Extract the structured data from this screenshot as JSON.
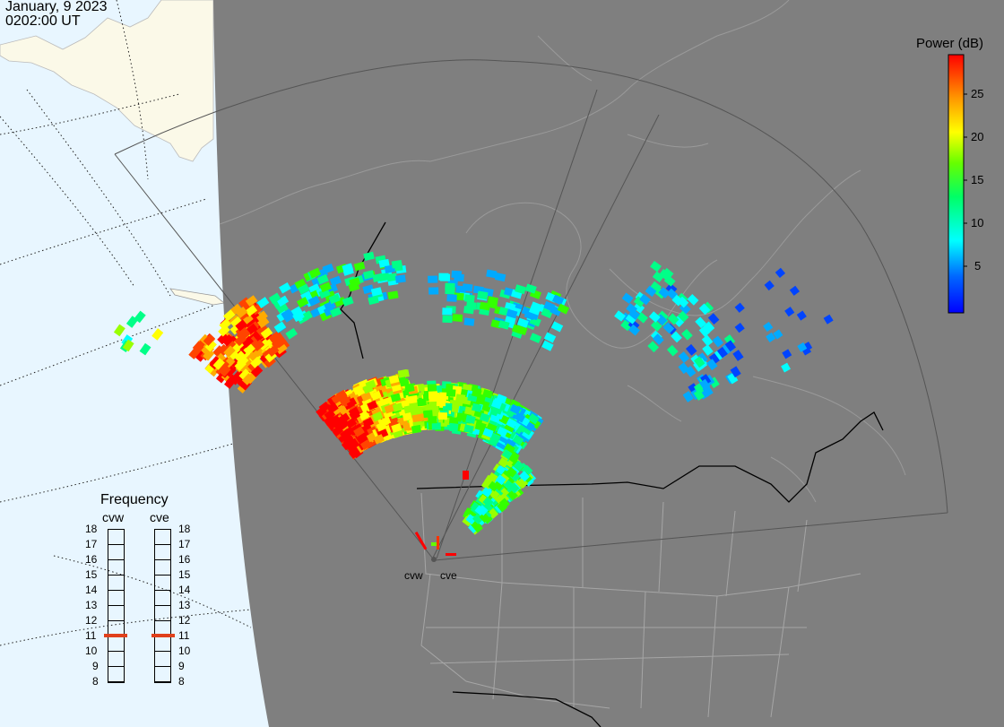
{
  "header": {
    "date": "January, 9 2023",
    "time": "0202:00 UT"
  },
  "frequency_panel": {
    "title": "Frequency",
    "radars": [
      {
        "name": "cvw",
        "frequency_mhz": 11
      },
      {
        "name": "cve",
        "frequency_mhz": 11
      }
    ],
    "scale": [
      "18",
      "17",
      "16",
      "15",
      "14",
      "13",
      "12",
      "11",
      "10",
      "9",
      "8"
    ],
    "marker_color": "#e0401a"
  },
  "colorbar": {
    "title": "Power (dB)",
    "ticks": [
      "25",
      "20",
      "15",
      "10",
      "5"
    ],
    "range": [
      0,
      30
    ],
    "colors": [
      "#0000ff",
      "#00aaff",
      "#00ffff",
      "#00ff66",
      "#66ff00",
      "#ffff00",
      "#ff9900",
      "#ff0000"
    ]
  },
  "sites": [
    {
      "label": "cvw"
    },
    {
      "label": "cve"
    }
  ],
  "colors": {
    "ocean": "#e8f6ff",
    "land_night": "#7f7f7f",
    "land_day": "#fbf9e8",
    "fov_outline": "#555555",
    "state_lines": "#a6a6a6",
    "border_lines": "#000000"
  }
}
